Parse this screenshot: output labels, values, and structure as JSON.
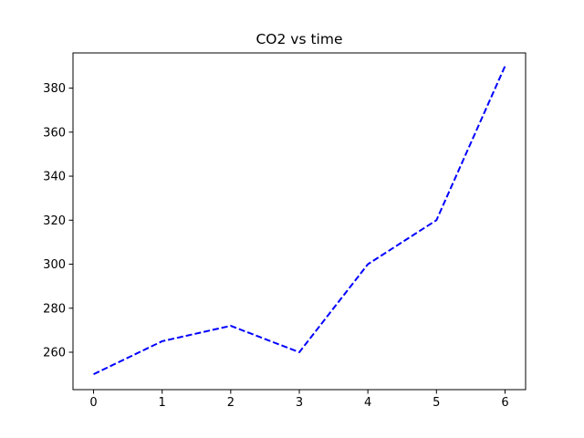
{
  "chart_data": {
    "type": "line",
    "title": "CO2 vs time",
    "xlabel": "",
    "ylabel": "",
    "x": [
      0,
      1,
      2,
      3,
      4,
      5,
      6
    ],
    "series": [
      {
        "values": [
          250,
          265,
          272,
          260,
          300,
          320,
          390
        ],
        "color": "#0000ff",
        "line_style": "dashed"
      }
    ],
    "xlim": [
      -0.3,
      6.3
    ],
    "ylim": [
      243,
      396
    ],
    "x_ticks": [
      0,
      1,
      2,
      3,
      4,
      5,
      6
    ],
    "y_ticks": [
      260,
      280,
      300,
      320,
      340,
      360,
      380
    ],
    "grid": false,
    "legend": "none"
  }
}
